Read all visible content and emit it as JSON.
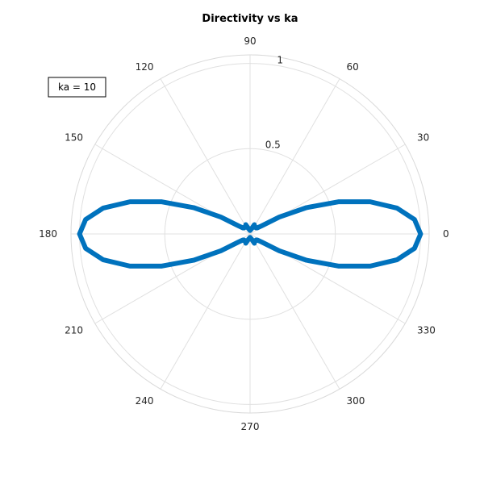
{
  "chart_data": {
    "type": "polar-line",
    "title": "Directivity vs ka",
    "legend": {
      "text": "ka = 10",
      "placement": "top-left"
    },
    "r_ticks": [
      "0.5",
      "1"
    ],
    "r_tick_values": [
      0.5,
      1
    ],
    "theta_ticks": [
      "0",
      "30",
      "60",
      "90",
      "120",
      "150",
      "180",
      "210",
      "240",
      "270",
      "300",
      "330"
    ],
    "theta_tick_values": [
      0,
      30,
      60,
      90,
      120,
      150,
      180,
      210,
      240,
      270,
      300,
      330
    ],
    "rlim": [
      0,
      1.05
    ],
    "grid": true,
    "line_color": "#0072BD",
    "series": [
      {
        "ka": 10,
        "theta_deg": [
          0,
          5,
          10,
          15,
          20,
          25,
          30,
          35,
          40,
          45,
          50,
          55,
          60,
          65,
          70,
          75,
          80,
          85,
          90,
          95,
          100,
          105,
          110,
          115,
          120,
          125,
          130,
          135,
          140,
          145,
          150,
          155,
          160,
          165,
          170,
          175,
          180,
          185,
          190,
          195,
          200,
          205,
          210,
          215,
          220,
          225,
          230,
          235,
          240,
          245,
          250,
          255,
          260,
          265,
          270,
          275,
          280,
          285,
          290,
          295,
          300,
          305,
          310,
          315,
          320,
          325,
          330,
          335,
          340,
          345,
          350,
          355,
          360
        ],
        "r": [
          1.0,
          0.968,
          0.874,
          0.729,
          0.551,
          0.365,
          0.198,
          0.082,
          0.055,
          0.05,
          0.052,
          0.048,
          0.05,
          0.06,
          0.04,
          0.03,
          0.03,
          0.022,
          0.02,
          0.022,
          0.03,
          0.03,
          0.04,
          0.06,
          0.05,
          0.048,
          0.052,
          0.05,
          0.055,
          0.082,
          0.198,
          0.365,
          0.551,
          0.729,
          0.874,
          0.968,
          1.0,
          0.968,
          0.874,
          0.729,
          0.551,
          0.365,
          0.198,
          0.082,
          0.055,
          0.05,
          0.052,
          0.048,
          0.05,
          0.06,
          0.04,
          0.03,
          0.03,
          0.022,
          0.02,
          0.022,
          0.03,
          0.03,
          0.04,
          0.06,
          0.05,
          0.048,
          0.052,
          0.05,
          0.055,
          0.082,
          0.198,
          0.365,
          0.551,
          0.729,
          0.874,
          0.968,
          1.0
        ]
      }
    ]
  }
}
